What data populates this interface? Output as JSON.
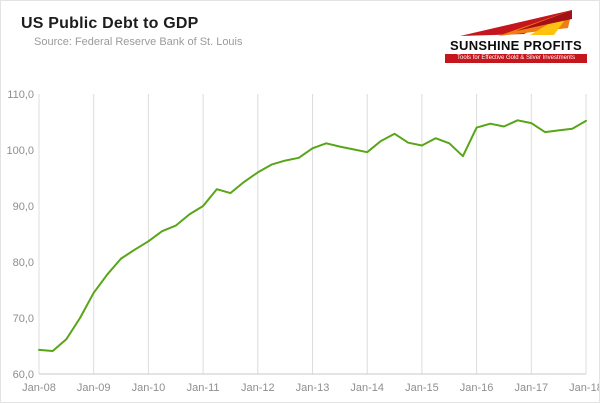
{
  "header": {
    "title": "US Public Debt to GDP",
    "source": "Source: Federal Reserve Bank of St. Louis"
  },
  "logo": {
    "name": "SUNSHINE PROFITS",
    "tagline": "Tools for Effective Gold & Silver Investments",
    "colors": {
      "red": "#c5161d",
      "orange": "#ef7d13",
      "gold": "#ffc20e"
    }
  },
  "chart_data": {
    "type": "line",
    "title": "US Public Debt to GDP",
    "xlabel": "",
    "ylabel": "",
    "ylim": [
      60,
      110
    ],
    "yticks": [
      60,
      70,
      80,
      90,
      100,
      110
    ],
    "ytick_labels": [
      "60,0",
      "70,0",
      "80,0",
      "90,0",
      "100,0",
      "110,0"
    ],
    "categories": [
      "Jan-08",
      "Jan-09",
      "Jan-10",
      "Jan-11",
      "Jan-12",
      "Jan-13",
      "Jan-14",
      "Jan-15",
      "Jan-16",
      "Jan-17",
      "Jan-18"
    ],
    "x_frequency": "quarterly",
    "grid": "vertical",
    "legend": "none",
    "series": [
      {
        "name": "US public debt to GDP (%)",
        "color": "#58a618",
        "values": [
          64.3,
          64.1,
          66.2,
          70.0,
          74.5,
          77.8,
          80.6,
          82.2,
          83.7,
          85.5,
          86.5,
          88.5,
          90.0,
          93.0,
          92.3,
          94.3,
          96.0,
          97.4,
          98.1,
          98.6,
          100.3,
          101.2,
          100.6,
          100.1,
          99.6,
          101.6,
          102.9,
          101.3,
          100.8,
          102.1,
          101.2,
          98.9,
          104.0,
          104.7,
          104.2,
          105.3,
          104.8,
          103.2,
          103.5,
          103.8,
          105.2
        ]
      }
    ]
  }
}
